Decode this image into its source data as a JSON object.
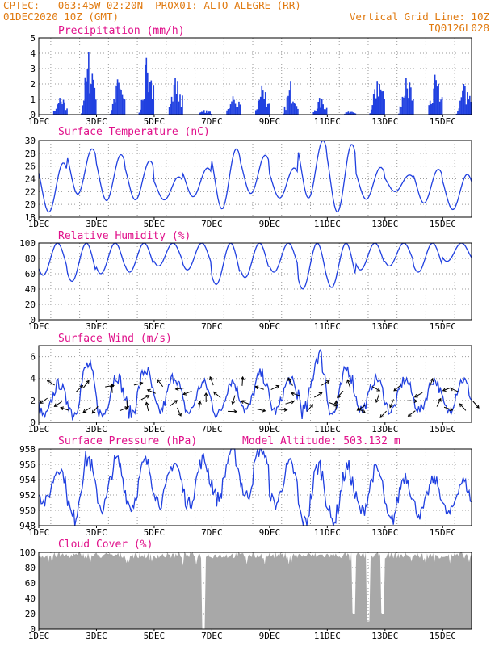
{
  "header": {
    "line1": "CPTEC:   063:45W-02:20N  PROX01: ALTO ALEGRE (RR)",
    "line2": "01DEC2020 10Z (GMT)",
    "grid_note": "Vertical Grid Line: 10Z",
    "code": "TQ0126L028"
  },
  "colors": {
    "header": "#e07a10",
    "title": "#e0108a",
    "series": "#2040e0",
    "cloud": "#a8a8a8",
    "grid": "#999999",
    "arrow": "#000000"
  },
  "chart_data": [
    {
      "type": "bar",
      "title": "Precipitation (mm/h)",
      "ylim": [
        0,
        5
      ],
      "yticks": [
        0,
        1,
        2,
        3,
        4,
        5
      ],
      "xticks": [
        "1DEC",
        "3DEC",
        "5DEC",
        "7DEC",
        "9DEC",
        "11DEC",
        "13DEC",
        "15DEC"
      ],
      "x_range_days": [
        1,
        16
      ],
      "values_daily_max": [
        1.1,
        4.1,
        2.3,
        3.7,
        2.4,
        0.3,
        1.2,
        1.9,
        2.2,
        1.1,
        0.2,
        2.2,
        2.4,
        2.6,
        2.0
      ],
      "notable": [
        {
          "day": 2.75,
          "value": 4.1
        },
        {
          "day": 4.75,
          "value": 3.7
        },
        {
          "day": 14.75,
          "value": 2.5
        }
      ]
    },
    {
      "type": "line",
      "title": "Surface Temperature (nC)",
      "ylim": [
        18,
        30
      ],
      "yticks": [
        18,
        20,
        22,
        24,
        26,
        28,
        30
      ],
      "xticks": [
        "1DEC",
        "3DEC",
        "5DEC",
        "7DEC",
        "9DEC",
        "11DEC",
        "13DEC",
        "15DEC"
      ],
      "x_range_days": [
        1,
        16
      ],
      "daily_max": [
        26.5,
        28.7,
        27.8,
        26.8,
        24.3,
        25.7,
        28.7,
        27.7,
        25.7,
        30.0,
        29.4,
        25.8,
        24.6,
        25.5,
        24.7
      ],
      "daily_min": [
        18.8,
        21.6,
        20.6,
        20.7,
        20.7,
        21.2,
        19.3,
        21.7,
        21.0,
        21.0,
        18.8,
        20.8,
        22.0,
        20.2,
        19.2
      ]
    },
    {
      "type": "line",
      "title": "Relative Humidity (%)",
      "ylim": [
        0,
        100
      ],
      "yticks": [
        0,
        20,
        40,
        60,
        80,
        100
      ],
      "xticks": [
        "1DEC",
        "3DEC",
        "5DEC",
        "7DEC",
        "9DEC",
        "11DEC",
        "13DEC",
        "15DEC"
      ],
      "x_range_days": [
        1,
        16
      ],
      "daily_min": [
        58,
        50,
        60,
        62,
        70,
        65,
        46,
        55,
        62,
        40,
        42,
        65,
        70,
        62,
        76
      ],
      "daily_max": [
        100,
        100,
        100,
        100,
        100,
        100,
        100,
        100,
        100,
        100,
        100,
        100,
        100,
        100,
        100
      ]
    },
    {
      "type": "line",
      "title": "Surface Wind (m/s)",
      "ylim": [
        0,
        7
      ],
      "yticks": [
        0,
        2,
        4,
        6
      ],
      "xticks": [
        "1DEC",
        "3DEC",
        "5DEC",
        "7DEC",
        "9DEC",
        "11DEC",
        "13DEC",
        "15DEC"
      ],
      "x_range_days": [
        1,
        16
      ],
      "daily_min": [
        0.5,
        0.8,
        0.6,
        0.8,
        1.0,
        0.9,
        0.7,
        1.1,
        1.0,
        0.9,
        0.8,
        1.2,
        1.0,
        1.1,
        1.0
      ],
      "daily_max": [
        3.5,
        5.2,
        4.3,
        4.8,
        4.2,
        3.6,
        3.8,
        4.4,
        3.9,
        6.2,
        4.9,
        4.0,
        3.9,
        3.9,
        3.9
      ],
      "wind_arrows": "direction vectors plotted every ~6 h"
    },
    {
      "type": "line",
      "title": "Surface Pressure (hPa)",
      "annotation": "Model Altitude: 503.132  m",
      "ylim": [
        948,
        958
      ],
      "yticks": [
        948,
        950,
        952,
        954,
        956,
        958
      ],
      "xticks": [
        "1DEC",
        "3DEC",
        "5DEC",
        "7DEC",
        "9DEC",
        "11DEC",
        "13DEC",
        "15DEC"
      ],
      "x_range_days": [
        1,
        16
      ],
      "daily_max": [
        955.5,
        956.8,
        956.5,
        956.3,
        956.2,
        956.6,
        957.9,
        958.3,
        956.0,
        955.8,
        955.5,
        955.3,
        954.5,
        954.0,
        953.8
      ],
      "daily_min": [
        951.0,
        948.9,
        950.3,
        950.5,
        951.0,
        950.8,
        951.5,
        951.8,
        950.8,
        948.2,
        948.5,
        949.8,
        948.5,
        949.5,
        949.5
      ]
    },
    {
      "type": "area",
      "title": "Cloud Cover (%)",
      "ylim": [
        0,
        100
      ],
      "yticks": [
        0,
        20,
        40,
        60,
        80,
        100
      ],
      "xticks": [
        "1DEC",
        "3DEC",
        "5DEC",
        "7DEC",
        "9DEC",
        "11DEC",
        "13DEC",
        "15DEC"
      ],
      "x_range_days": [
        1,
        16
      ],
      "baseline_value": 92,
      "notable": [
        {
          "day": 6.7,
          "value": 0
        },
        {
          "day": 11.9,
          "value": 20
        },
        {
          "day": 12.4,
          "value": 10
        },
        {
          "day": 12.9,
          "value": 20
        }
      ]
    }
  ]
}
